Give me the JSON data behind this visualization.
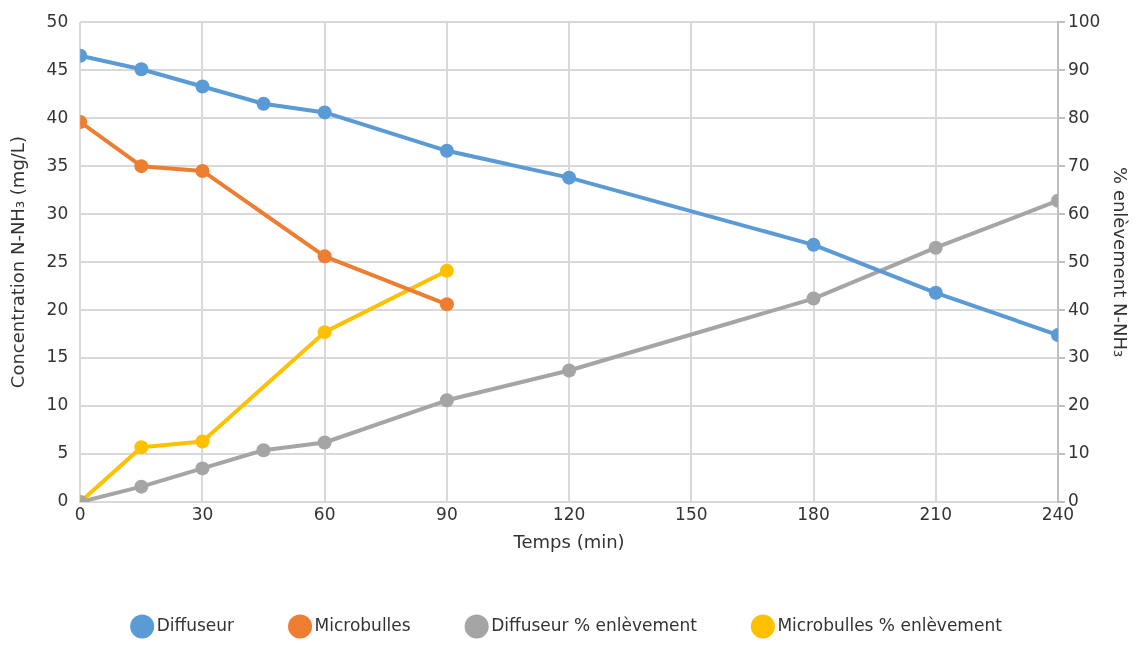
{
  "chart_data": {
    "type": "line",
    "xlabel": "Temps (min)",
    "ylabel": "Concentration N-NH₃ (mg/L)",
    "y2label": "% enlèvement N-NH₃",
    "xlim": [
      0,
      240
    ],
    "xticks": [
      0,
      30,
      60,
      90,
      120,
      150,
      180,
      210,
      240
    ],
    "ylim": [
      0,
      50
    ],
    "yticks": [
      0,
      5,
      10,
      15,
      20,
      25,
      30,
      35,
      40,
      45,
      50
    ],
    "y2lim": [
      0,
      100
    ],
    "y2ticks": [
      0,
      10,
      20,
      30,
      40,
      50,
      60,
      70,
      80,
      90,
      100
    ],
    "grid": true,
    "legend": "bottom",
    "marker": "circle",
    "line_style": "solid",
    "series": [
      {
        "name": "Diffuseur",
        "color": "#5b9bd5",
        "x": [
          0,
          15,
          30,
          45,
          60,
          90,
          120,
          180,
          210,
          240
        ],
        "values": [
          46.5,
          45.1,
          43.3,
          41.5,
          40.6,
          36.6,
          33.8,
          26.8,
          21.8,
          17.4
        ]
      },
      {
        "name": "Microbulles",
        "color": "#ed7d31",
        "x": [
          0,
          15,
          30,
          60,
          90
        ],
        "values": [
          39.6,
          35.0,
          34.5,
          25.6,
          20.6
        ]
      },
      {
        "name": "Diffuseur % enlèvement",
        "color": "#a5a5a5",
        "axis": "y2",
        "x": [
          0,
          15,
          30,
          45,
          60,
          90,
          120,
          180,
          210,
          240
        ],
        "values": [
          0,
          3.2,
          7,
          10.8,
          12.4,
          21.2,
          27.4,
          42.4,
          53,
          62.8
        ]
      },
      {
        "name": "Microbulles % enlèvement",
        "color": "#ffc000",
        "axis": "y2",
        "x": [
          0,
          15,
          30,
          60,
          90
        ],
        "values": [
          0,
          11.4,
          12.6,
          35.4,
          48.2
        ]
      }
    ]
  }
}
